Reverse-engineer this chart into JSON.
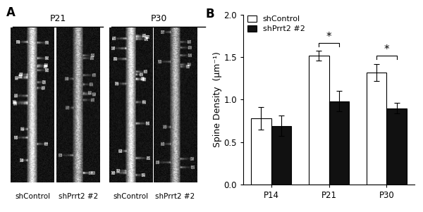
{
  "title_left": "A",
  "title_right": "B",
  "categories": [
    "P14",
    "P21",
    "P30"
  ],
  "shControl_values": [
    0.78,
    1.52,
    1.32
  ],
  "shPrrt2_values": [
    0.69,
    0.98,
    0.9
  ],
  "shControl_errors": [
    0.13,
    0.06,
    0.1
  ],
  "shPrrt2_errors": [
    0.12,
    0.12,
    0.06
  ],
  "ylabel": "Spine Density  (μm⁻¹)",
  "ylim": [
    0.0,
    2.0
  ],
  "yticks": [
    0.0,
    0.5,
    1.0,
    1.5,
    2.0
  ],
  "bar_width": 0.35,
  "shControl_color": "#ffffff",
  "shPrrt2_color": "#111111",
  "bar_edgecolor": "#000000",
  "legend_labels": [
    "shControl",
    "shPrrt2 #2"
  ],
  "background_color": "#ffffff",
  "fontsize": 9,
  "label_fontsize": 9,
  "tick_fontsize": 8.5,
  "img_labels_top": [
    "P21",
    "P30"
  ],
  "img_labels_bottom": [
    "shControl",
    "shPrrt2 #2",
    "shControl",
    "shPrrt2 #2"
  ]
}
